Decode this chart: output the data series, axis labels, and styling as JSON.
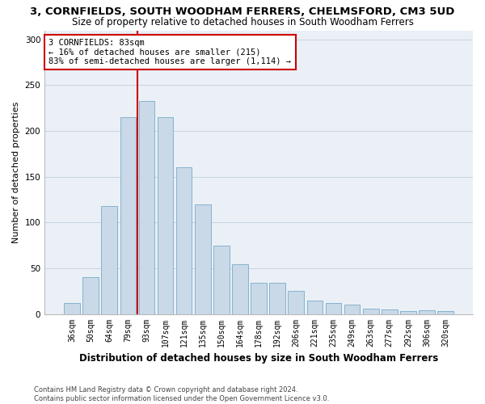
{
  "title": "3, CORNFIELDS, SOUTH WOODHAM FERRERS, CHELMSFORD, CM3 5UD",
  "subtitle": "Size of property relative to detached houses in South Woodham Ferrers",
  "xlabel": "Distribution of detached houses by size in South Woodham Ferrers",
  "ylabel": "Number of detached properties",
  "footer_line1": "Contains HM Land Registry data © Crown copyright and database right 2024.",
  "footer_line2": "Contains public sector information licensed under the Open Government Licence v3.0.",
  "bar_labels": [
    "36sqm",
    "50sqm",
    "64sqm",
    "79sqm",
    "93sqm",
    "107sqm",
    "121sqm",
    "135sqm",
    "150sqm",
    "164sqm",
    "178sqm",
    "192sqm",
    "206sqm",
    "221sqm",
    "235sqm",
    "249sqm",
    "263sqm",
    "277sqm",
    "292sqm",
    "306sqm",
    "320sqm"
  ],
  "bar_values": [
    12,
    40,
    118,
    215,
    233,
    215,
    160,
    120,
    75,
    54,
    34,
    34,
    25,
    15,
    12,
    10,
    6,
    5,
    3,
    4,
    3
  ],
  "bar_color": "#c9d9e8",
  "bar_edge_color": "#7aaac8",
  "ylim": [
    0,
    310
  ],
  "yticks": [
    0,
    50,
    100,
    150,
    200,
    250,
    300
  ],
  "annotation_text_line1": "3 CORNFIELDS: 83sqm",
  "annotation_text_line2": "← 16% of detached houses are smaller (215)",
  "annotation_text_line3": "83% of semi-detached houses are larger (1,114) →",
  "annotation_box_color": "#ffffff",
  "annotation_box_edge": "#cc0000",
  "vline_color": "#cc0000",
  "grid_color": "#c8d4e0",
  "background_color": "#eaf0f6",
  "title_fontsize": 9.5,
  "subtitle_fontsize": 8.5,
  "xlabel_fontsize": 8.5,
  "ylabel_fontsize": 8,
  "tick_fontsize": 7,
  "annotation_fontsize": 7.5,
  "footer_fontsize": 6
}
